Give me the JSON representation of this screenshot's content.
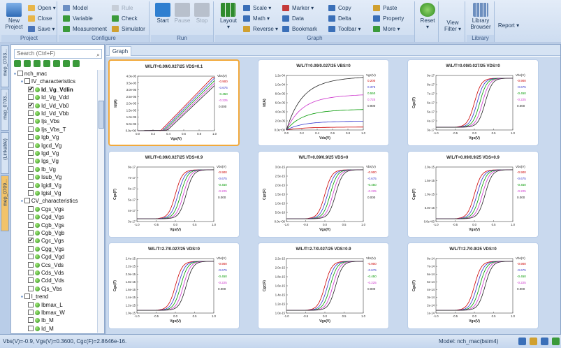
{
  "ribbon": {
    "project": {
      "group": "Project",
      "new_label": "New\nProject",
      "open": "Open",
      "close": "Close",
      "save": "Save"
    },
    "configure": {
      "group": "Configure",
      "model": "Model",
      "variable": "Variable",
      "measurement": "Measurement",
      "rule": "Rule",
      "check": "Check",
      "simulator": "Simulator"
    },
    "run": {
      "group": "Run",
      "start": "Start",
      "pause": "Pause",
      "stop": "Stop"
    },
    "graph": {
      "group": "Graph",
      "layout": "Layout",
      "scale": "Scale",
      "math": "Math",
      "reverse": "Reverse",
      "marker": "Marker",
      "data": "Data",
      "bookmark": "Bookmark",
      "copy": "Copy",
      "delta": "Delta",
      "toolbar": "Toolbar",
      "paste": "Paste",
      "property": "Property",
      "more": "More"
    },
    "reset": "Reset",
    "view_filter": "View\nFilter",
    "library": {
      "group": "Library",
      "browser": "Library\nBrowser"
    },
    "report": "Report"
  },
  "left_tabs": [
    "mep_0703...",
    "mep_0703...",
    "(Linkable)",
    "mep_0709..."
  ],
  "tree": {
    "search_placeholder": "Search (Ctrl+F)",
    "items": [
      {
        "label": "nch_mac",
        "level": 0,
        "cb": false,
        "dot": false,
        "box": true
      },
      {
        "label": "IV_characteristics",
        "level": 1,
        "cb": false,
        "dot": false,
        "box": true
      },
      {
        "label": "Id_Vg_Vdlin",
        "level": 2,
        "cb": true,
        "dot": true,
        "bold": true
      },
      {
        "label": "Id_Vg_Vdd",
        "level": 2,
        "cb": false,
        "dot": true
      },
      {
        "label": "Id_Vd_Vb0",
        "level": 2,
        "cb": true,
        "dot": true
      },
      {
        "label": "Id_Vd_Vbb",
        "level": 2,
        "cb": false,
        "dot": true
      },
      {
        "label": "Ijs_Vbs",
        "level": 2,
        "cb": false,
        "dot": true
      },
      {
        "label": "Ijs_Vbs_T",
        "level": 2,
        "cb": false,
        "dot": true
      },
      {
        "label": "Igb_Vg",
        "level": 2,
        "cb": false,
        "dot": true
      },
      {
        "label": "Igcd_Vg",
        "level": 2,
        "cb": false,
        "dot": true
      },
      {
        "label": "Igd_Vg",
        "level": 2,
        "cb": false,
        "dot": true
      },
      {
        "label": "Igs_Vg",
        "level": 2,
        "cb": false,
        "dot": true
      },
      {
        "label": "Ib_Vg",
        "level": 2,
        "cb": false,
        "dot": true
      },
      {
        "label": "Isub_Vg",
        "level": 2,
        "cb": false,
        "dot": true
      },
      {
        "label": "Igidl_Vg",
        "level": 2,
        "cb": false,
        "dot": true
      },
      {
        "label": "Igisl_Vg",
        "level": 2,
        "cb": false,
        "dot": true
      },
      {
        "label": "CV_characteristics",
        "level": 1,
        "cb": false,
        "dot": false,
        "box": true
      },
      {
        "label": "Cgs_Vgs",
        "level": 2,
        "cb": false,
        "dot": true
      },
      {
        "label": "Cgd_Vgs",
        "level": 2,
        "cb": false,
        "dot": true
      },
      {
        "label": "Cgb_Vgs",
        "level": 2,
        "cb": false,
        "dot": true
      },
      {
        "label": "Cgb_Vgb",
        "level": 2,
        "cb": false,
        "dot": true
      },
      {
        "label": "Cgc_Vgs",
        "level": 2,
        "cb": true,
        "dot": true
      },
      {
        "label": "Cgg_Vgs",
        "level": 2,
        "cb": false,
        "dot": true
      },
      {
        "label": "Cgd_Vgd",
        "level": 2,
        "cb": false,
        "dot": true
      },
      {
        "label": "Ccs_Vds",
        "level": 2,
        "cb": false,
        "dot": true
      },
      {
        "label": "Cds_Vds",
        "level": 2,
        "cb": false,
        "dot": true
      },
      {
        "label": "Cdd_Vds",
        "level": 2,
        "cb": false,
        "dot": true
      },
      {
        "label": "Cjs_Vbs",
        "level": 2,
        "cb": false,
        "dot": true
      },
      {
        "label": "l_trend",
        "level": 1,
        "cb": false,
        "dot": false,
        "box": true
      },
      {
        "label": "Ibmax_L",
        "level": 2,
        "cb": false,
        "dot": true
      },
      {
        "label": "Ibmax_W",
        "level": 2,
        "cb": false,
        "dot": true
      },
      {
        "label": "Ib_M",
        "level": 2,
        "cb": false,
        "dot": true
      },
      {
        "label": "Id_M",
        "level": 2,
        "cb": false,
        "dot": true
      }
    ]
  },
  "main": {
    "tab": "Graph",
    "charts": [
      {
        "title": "W/L/T=0.09/0.027/25 VDS=0.1",
        "ylabel": "Id(A)",
        "xlabel": "Vgs(V)",
        "legend_title": "Vbs(V)",
        "legend": [
          "-0.900",
          "-0.675",
          "-0.450",
          "-0.225",
          "0.000"
        ],
        "yticks": [
          "4.0e-05",
          "3.5e-05",
          "3.0e-05",
          "2.5e-05",
          "2.0e-05",
          "1.5e-05",
          "1.0e-05",
          "5.0e-06",
          "0.0e+00"
        ],
        "xticks": [
          "0.0",
          "0.2",
          "0.4",
          "0.6",
          "0.8",
          "1.0"
        ],
        "kind": "iv",
        "selected": true
      },
      {
        "title": "W/L/T=0.09/0.027/25 VBS=0",
        "ylabel": "Id(A)",
        "xlabel": "Vds(V)",
        "legend_title": "Vgs(V)",
        "legend": [
          "0.200",
          "0.375",
          "0.550",
          "0.725",
          "0.900"
        ],
        "yticks": [
          "1.2e-04",
          "1.0e-04",
          "8.0e-05",
          "6.0e-05",
          "4.0e-05",
          "2.0e-05",
          "0.0e+00"
        ],
        "xticks": [
          "0.0",
          "0.2",
          "0.4",
          "0.6",
          "0.8",
          "1.0"
        ],
        "kind": "out"
      },
      {
        "title": "W/L/T=0.09/0.027/25 VDS=0",
        "ylabel": "Cgc(F)",
        "xlabel": "Vgs(V)",
        "legend_title": "Vbs(V)",
        "legend": [
          "-0.900",
          "-0.675",
          "-0.450",
          "-0.225",
          "0.000"
        ],
        "yticks": [
          "9e-17",
          "8e-17",
          "7e-17",
          "6e-17",
          "5e-17",
          "4e-17",
          "3e-17"
        ],
        "xticks": [
          "-1.0",
          "-0.5",
          "0.0",
          "0.5",
          "1.0"
        ],
        "kind": "cv"
      },
      {
        "title": "W/L/T=0.09/0.027/25 VDS=0.9",
        "ylabel": "Cgc(F)",
        "xlabel": "Vgs(V)",
        "legend_title": "Vbs(V)",
        "legend": [
          "-0.900",
          "-0.675",
          "-0.450",
          "-0.225",
          "0.000"
        ],
        "yticks": [
          "8e-17",
          "7e-17",
          "6e-17",
          "5e-17",
          "4e-17",
          "3e-17"
        ],
        "xticks": [
          "-1.0",
          "-0.5",
          "0.0",
          "0.5",
          "1.0"
        ],
        "kind": "cv"
      },
      {
        "title": "W/L/T=0.09/0.9/25 VDS=0",
        "ylabel": "Cgc(F)",
        "xlabel": "Vgs(V)",
        "legend_title": "Vbs(V)",
        "legend": [
          "-0.900",
          "-0.675",
          "-0.450",
          "-0.225",
          "0.000"
        ],
        "yticks": [
          "3.0e-15",
          "2.5e-15",
          "2.0e-15",
          "1.5e-15",
          "1.0e-15",
          "5.0e-16",
          "0.0e+00"
        ],
        "xticks": [
          "-1.0",
          "-0.5",
          "0.0",
          "0.5",
          "1.0"
        ],
        "kind": "cv"
      },
      {
        "title": "W/L/T=0.09/0.9/25 VDS=0.9",
        "ylabel": "Cgc(F)",
        "xlabel": "Vgs(V)",
        "legend_title": "Vbs(V)",
        "legend": [
          "-0.900",
          "-0.675",
          "-0.450",
          "-0.225",
          "0.000"
        ],
        "yticks": [
          "2.0e-15",
          "1.5e-15",
          "1.0e-15",
          "5.0e-16",
          "0.0e+00"
        ],
        "xticks": [
          "-1.0",
          "-0.5",
          "0.0",
          "0.5",
          "1.0"
        ],
        "kind": "cv"
      },
      {
        "title": "W/L/T=2.7/0.027/25 VDS=0",
        "ylabel": "Cgc(F)",
        "xlabel": "Vgs(V)",
        "legend_title": "Vbs(V)",
        "legend": [
          "-0.900",
          "-0.675",
          "-0.450",
          "-0.225",
          "0.000"
        ],
        "yticks": [
          "2.4e-15",
          "2.2e-15",
          "2.0e-15",
          "1.8e-15",
          "1.6e-15",
          "1.4e-15",
          "1.2e-15",
          "1.0e-15"
        ],
        "xticks": [
          "-1.0",
          "-0.5",
          "0.0",
          "0.5",
          "1.0"
        ],
        "kind": "cv"
      },
      {
        "title": "W/L/T=2.7/0.027/25 VDS=0.9",
        "ylabel": "Cgc(F)",
        "xlabel": "Vgs(V)",
        "legend_title": "Vbs(V)",
        "legend": [
          "-0.900",
          "-0.675",
          "-0.450",
          "-0.225",
          "0.000"
        ],
        "yticks": [
          "2.2e-15",
          "2.0e-15",
          "1.8e-15",
          "1.6e-15",
          "1.4e-15",
          "1.2e-15",
          "1.0e-15"
        ],
        "xticks": [
          "-1.0",
          "-0.5",
          "0.0",
          "0.5",
          "1.0"
        ],
        "kind": "cv"
      },
      {
        "title": "W/L/T=2.7/0.9/25 VDS=0",
        "ylabel": "Cgc(F)",
        "xlabel": "Vgs(V)",
        "legend_title": "Vbs(V)",
        "legend": [
          "-0.900",
          "-0.675",
          "-0.450",
          "-0.225",
          "0.000"
        ],
        "yticks": [
          "8e-14",
          "7e-14",
          "6e-14",
          "5e-14",
          "4e-14",
          "3e-14",
          "2e-14",
          "1e-14"
        ],
        "xticks": [
          "-1.0",
          "-0.5",
          "0.0",
          "0.5",
          "1.0"
        ],
        "kind": "cv"
      }
    ]
  },
  "status": {
    "text": "Vbs(V)=-0.9, Vgs(V)=0.3600, Cgc(F)=2.8646e-16.",
    "model": "Model: nch_mac(bsim4)"
  },
  "colors": {
    "ribbon_bg": "#d8e4f3",
    "accent": "#f2a93b",
    "series": [
      "#cc0000",
      "#3333cc",
      "#009900",
      "#cc33cc",
      "#222222"
    ]
  }
}
